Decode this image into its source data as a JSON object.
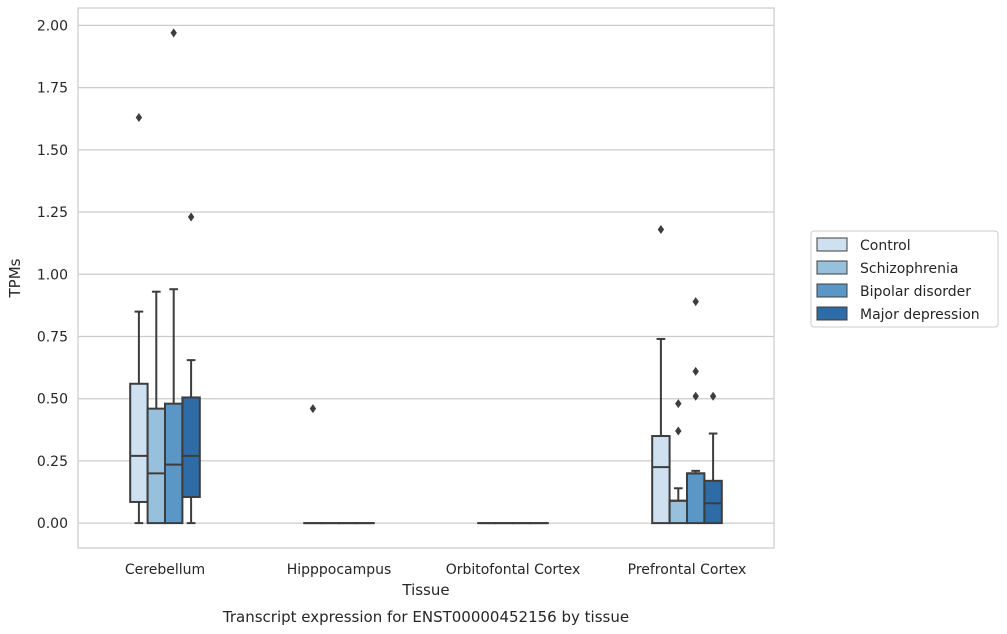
{
  "chart_data": {
    "type": "boxplot",
    "caption": "Transcript expression for ENST00000452156 by tissue",
    "xlabel": "Tissue",
    "ylabel": "TPMs",
    "ylim": [
      -0.1,
      2.07
    ],
    "yticks": [
      "0.00",
      "0.25",
      "0.50",
      "0.75",
      "1.00",
      "1.25",
      "1.50",
      "1.75",
      "2.00"
    ],
    "grid": "horizontal",
    "legend_position": "right",
    "categories": [
      "Cerebellum",
      "Hipppocampus",
      "Orbitofontal Cortex",
      "Prefrontal Cortex"
    ],
    "series": [
      {
        "name": "Control",
        "color": "#cfe0f0",
        "boxes": [
          {
            "q1": 0.085,
            "median": 0.27,
            "q3": 0.56,
            "whisker_low": 0.0,
            "whisker_high": 0.85,
            "outliers": [
              1.63
            ]
          },
          {
            "q1": 0.0,
            "median": 0.0,
            "q3": 0.0,
            "whisker_low": 0.0,
            "whisker_high": 0.0,
            "outliers": [
              0.46
            ]
          },
          {
            "q1": 0.0,
            "median": 0.0,
            "q3": 0.0,
            "whisker_low": 0.0,
            "whisker_high": 0.0,
            "outliers": []
          },
          {
            "q1": 0.0,
            "median": 0.225,
            "q3": 0.35,
            "whisker_low": 0.0,
            "whisker_high": 0.74,
            "outliers": [
              1.18
            ]
          }
        ]
      },
      {
        "name": "Schizophrenia",
        "color": "#97c0dc",
        "boxes": [
          {
            "q1": 0.0,
            "median": 0.2,
            "q3": 0.46,
            "whisker_low": 0.0,
            "whisker_high": 0.93,
            "outliers": []
          },
          {
            "q1": 0.0,
            "median": 0.0,
            "q3": 0.0,
            "whisker_low": 0.0,
            "whisker_high": 0.0,
            "outliers": []
          },
          {
            "q1": 0.0,
            "median": 0.0,
            "q3": 0.0,
            "whisker_low": 0.0,
            "whisker_high": 0.0,
            "outliers": []
          },
          {
            "q1": 0.0,
            "median": 0.09,
            "q3": 0.09,
            "whisker_low": 0.0,
            "whisker_high": 0.14,
            "outliers": [
              0.48,
              0.37
            ]
          }
        ]
      },
      {
        "name": "Bipolar disorder",
        "color": "#5a96c6",
        "boxes": [
          {
            "q1": 0.0,
            "median": 0.235,
            "q3": 0.48,
            "whisker_low": 0.0,
            "whisker_high": 0.94,
            "outliers": [
              1.97
            ]
          },
          {
            "q1": 0.0,
            "median": 0.0,
            "q3": 0.0,
            "whisker_low": 0.0,
            "whisker_high": 0.0,
            "outliers": []
          },
          {
            "q1": 0.0,
            "median": 0.0,
            "q3": 0.0,
            "whisker_low": 0.0,
            "whisker_high": 0.0,
            "outliers": []
          },
          {
            "q1": 0.0,
            "median": 0.2,
            "q3": 0.2,
            "whisker_low": 0.0,
            "whisker_high": 0.21,
            "outliers": [
              0.89,
              0.61,
              0.51
            ]
          }
        ]
      },
      {
        "name": "Major depression",
        "color": "#2e6ca7",
        "boxes": [
          {
            "q1": 0.105,
            "median": 0.27,
            "q3": 0.505,
            "whisker_low": 0.0,
            "whisker_high": 0.655,
            "outliers": [
              1.23
            ]
          },
          {
            "q1": 0.0,
            "median": 0.0,
            "q3": 0.0,
            "whisker_low": 0.0,
            "whisker_high": 0.0,
            "outliers": []
          },
          {
            "q1": 0.0,
            "median": 0.0,
            "q3": 0.0,
            "whisker_low": 0.0,
            "whisker_high": 0.0,
            "outliers": []
          },
          {
            "q1": 0.0,
            "median": 0.08,
            "q3": 0.17,
            "whisker_low": 0.0,
            "whisker_high": 0.36,
            "outliers": [
              0.51
            ]
          }
        ]
      }
    ]
  }
}
